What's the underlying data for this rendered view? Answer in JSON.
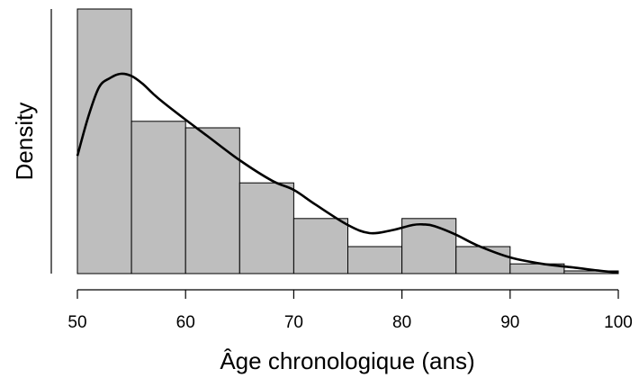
{
  "chart_data": {
    "type": "bar",
    "subtype": "histogram-with-density-curve",
    "xlabel": "Âge chronologique (ans)",
    "ylabel": "Density",
    "xlim": [
      50,
      100
    ],
    "x_ticks": [
      50,
      60,
      70,
      80,
      90,
      100
    ],
    "y_ticks_shown": false,
    "bins": [
      {
        "from": 50,
        "to": 55,
        "density": 0.049
      },
      {
        "from": 55,
        "to": 60,
        "density": 0.0282
      },
      {
        "from": 60,
        "to": 65,
        "density": 0.027
      },
      {
        "from": 65,
        "to": 70,
        "density": 0.0168
      },
      {
        "from": 70,
        "to": 75,
        "density": 0.0102
      },
      {
        "from": 75,
        "to": 80,
        "density": 0.005
      },
      {
        "from": 80,
        "to": 85,
        "density": 0.0102
      },
      {
        "from": 85,
        "to": 90,
        "density": 0.005
      },
      {
        "from": 90,
        "to": 95,
        "density": 0.0018
      },
      {
        "from": 95,
        "to": 100,
        "density": 0.0005
      }
    ],
    "density_curve": {
      "x": [
        50,
        51,
        52,
        53,
        54,
        55,
        56,
        57,
        58,
        60,
        62,
        65,
        68,
        70,
        72,
        75,
        77,
        79,
        81,
        82,
        83,
        85,
        87,
        90,
        93,
        96,
        98,
        100
      ],
      "y": [
        0.0218,
        0.029,
        0.0345,
        0.0362,
        0.037,
        0.0366,
        0.0352,
        0.0333,
        0.0316,
        0.0285,
        0.0255,
        0.021,
        0.0172,
        0.0155,
        0.0128,
        0.009,
        0.0075,
        0.008,
        0.009,
        0.0091,
        0.0088,
        0.0072,
        0.0052,
        0.003,
        0.0018,
        0.0011,
        0.0006,
        0.0002
      ]
    },
    "bar_color": "#bebebe",
    "bar_edge_color": "#000000",
    "curve_color": "#000000",
    "grid": false
  }
}
